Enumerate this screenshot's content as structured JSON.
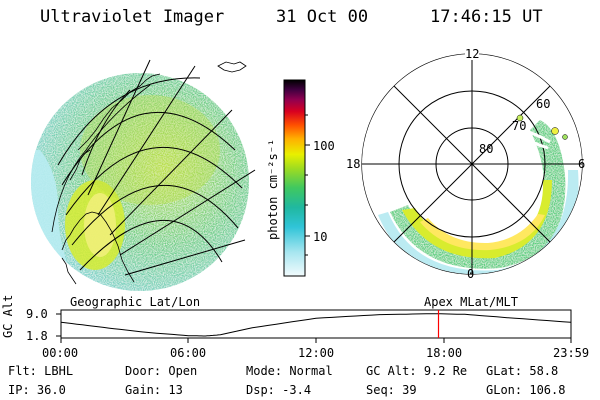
{
  "header": {
    "title": "Ultraviolet Imager",
    "date": "31 Oct 00",
    "time": "17:46:15 UT"
  },
  "left_panel": {
    "label": "Geographic Lat/Lon"
  },
  "right_panel": {
    "label": "Apex MLat/MLT",
    "mlt_labels": [
      "12",
      "18",
      "6",
      "0"
    ],
    "mlat_labels": [
      "60",
      "70",
      "80"
    ]
  },
  "colorbar": {
    "unit_label": "photon cm⁻²s⁻¹",
    "ticks": [
      "100",
      "10"
    ],
    "colors": [
      "#000000",
      "#3a0a40",
      "#8a0050",
      "#c80020",
      "#ff4000",
      "#ff8800",
      "#ffd000",
      "#d8f000",
      "#80d800",
      "#20c060",
      "#10b0b0",
      "#30c8d8",
      "#a0e8f0",
      "#e8f8fb"
    ]
  },
  "timeline": {
    "axis_label": "GC Alt",
    "y_ticks": [
      "9.0",
      "1.8"
    ],
    "x_ticks": [
      "00:00",
      "06:00",
      "12:00",
      "18:00",
      "23:59"
    ],
    "marker_time": "17:46",
    "altitude_profile_Re": [
      {
        "t": 0,
        "alt": 6.3
      },
      {
        "t": 2,
        "alt": 4.6
      },
      {
        "t": 4,
        "alt": 3.0
      },
      {
        "t": 6,
        "alt": 1.9
      },
      {
        "t": 6.8,
        "alt": 1.8
      },
      {
        "t": 7.5,
        "alt": 2.2
      },
      {
        "t": 9,
        "alt": 4.5
      },
      {
        "t": 12,
        "alt": 7.6
      },
      {
        "t": 15,
        "alt": 8.8
      },
      {
        "t": 17.5,
        "alt": 9.1
      },
      {
        "t": 19,
        "alt": 8.9
      },
      {
        "t": 21,
        "alt": 7.8
      },
      {
        "t": 23.98,
        "alt": 6.3
      }
    ],
    "marker_color": "#ff0000"
  },
  "info": [
    {
      "label": "Flt:",
      "value": "LBHL"
    },
    {
      "label": "Door:",
      "value": "Open"
    },
    {
      "label": "Mode:",
      "value": "Normal"
    },
    {
      "label": "GC Alt:",
      "value": "9.2 Re"
    },
    {
      "label": "GLat:",
      "value": "58.8"
    },
    {
      "label": "IP:",
      "value": "36.0"
    },
    {
      "label": "Gain:",
      "value": "13"
    },
    {
      "label": "Dsp:",
      "value": "-3.4"
    },
    {
      "label": "Seq:",
      "value": "39"
    },
    {
      "label": "GLon:",
      "value": "106.8"
    }
  ]
}
